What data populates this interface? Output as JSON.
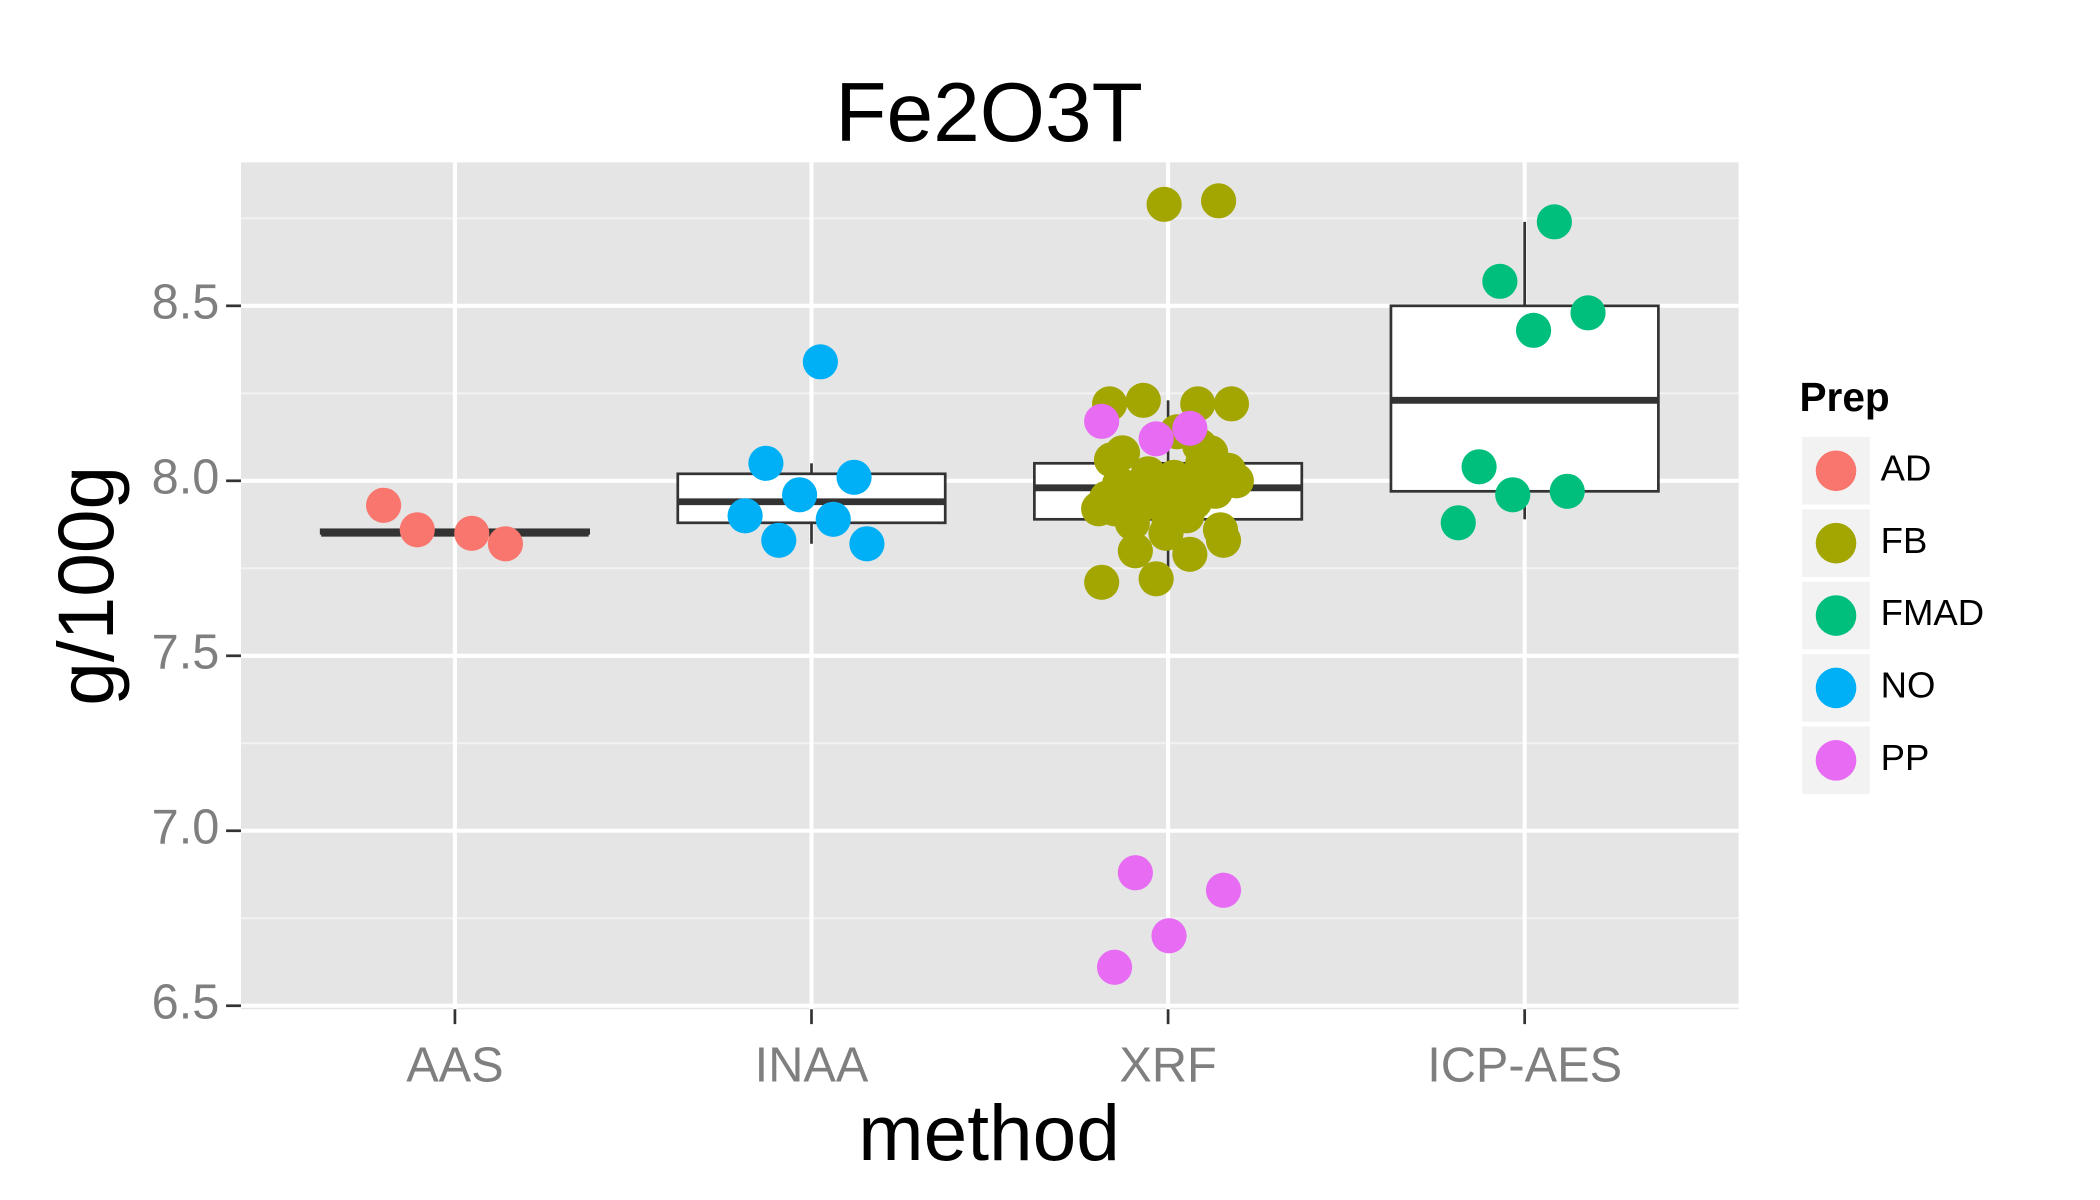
{
  "chart_data": {
    "type": "box",
    "title": "Fe2O3T",
    "x_label": "method",
    "y_label": "g/100g",
    "categories": [
      "AAS",
      "INAA",
      "XRF",
      "ICP-AES"
    ],
    "boxes": [
      {
        "low": 7.85,
        "q1": 7.85,
        "median": 7.85,
        "q3": 7.86,
        "high": 7.86
      },
      {
        "low": 7.82,
        "q1": 7.88,
        "median": 7.94,
        "q3": 8.02,
        "high": 8.05
      },
      {
        "low": 7.71,
        "q1": 7.89,
        "median": 7.98,
        "q3": 8.05,
        "high": 8.23
      },
      {
        "low": 7.89,
        "q1": 7.97,
        "median": 8.23,
        "q3": 8.5,
        "high": 8.74
      }
    ],
    "legend_title": "Prep",
    "series": [
      {
        "name": "AD",
        "color": "#F8766D",
        "category": 0,
        "values": [
          7.93,
          7.85,
          7.86,
          7.82
        ]
      },
      {
        "name": "FB",
        "color": "#A3A500",
        "category": 2,
        "values": [
          8.8,
          8.79,
          8.22,
          8.22,
          8.23,
          8.22,
          8.14,
          8.08,
          8.08,
          7.72,
          7.71,
          7.79,
          7.8,
          7.83,
          7.89,
          7.92,
          8.05,
          8.02,
          8.0,
          7.99,
          7.98,
          7.97,
          7.96,
          7.95,
          7.94,
          7.93,
          8.03,
          8.01,
          7.99,
          7.97,
          7.95,
          7.92,
          7.9,
          7.88,
          7.86,
          7.85,
          8.06,
          8.1
        ]
      },
      {
        "name": "FMAD",
        "color": "#00BF7D",
        "category": 3,
        "values": [
          8.74,
          8.57,
          8.48,
          8.43,
          8.04,
          7.97,
          7.96,
          7.88
        ]
      },
      {
        "name": "NO",
        "color": "#00B0F6",
        "category": 1,
        "values": [
          8.34,
          8.05,
          8.01,
          7.96,
          7.9,
          7.89,
          7.83,
          7.82
        ]
      },
      {
        "name": "PP",
        "color": "#E76BF3",
        "category": 2,
        "values": [
          8.12,
          8.17,
          8.15,
          6.88,
          6.83,
          6.7,
          6.61
        ]
      }
    ],
    "ylim": [
      6.49,
      8.91
    ],
    "yticks": [
      {
        "value": 6.5,
        "label": "6.5"
      },
      {
        "value": 7,
        "label": "7.0"
      },
      {
        "value": 7.5,
        "label": "7.5"
      },
      {
        "value": 8,
        "label": "8.0"
      },
      {
        "value": 8.5,
        "label": "8.5"
      }
    ],
    "grid": true,
    "legend_position": "right"
  }
}
